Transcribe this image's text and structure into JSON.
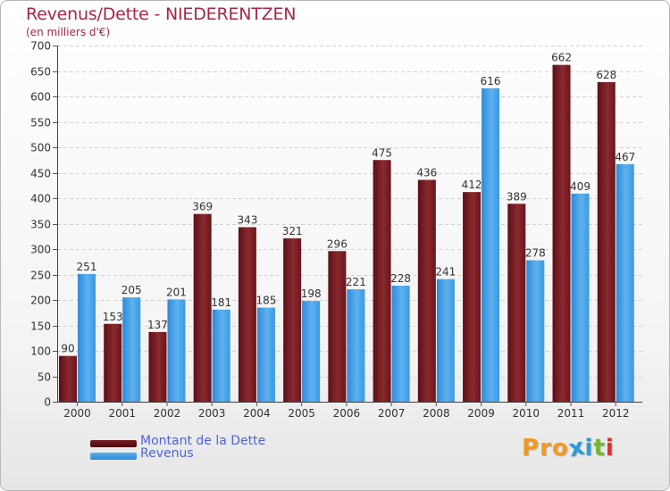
{
  "chart_data": {
    "type": "bar",
    "title": "Revenus/Dette - NIEDERENTZEN",
    "subtitle": "(en milliers d'€)",
    "categories": [
      "2000",
      "2001",
      "2002",
      "2003",
      "2004",
      "2005",
      "2006",
      "2007",
      "2008",
      "2009",
      "2010",
      "2011",
      "2012"
    ],
    "series": [
      {
        "name": "Montant de la Dette",
        "color": "#7a1a22",
        "values": [
          90,
          153,
          137,
          369,
          343,
          321,
          296,
          475,
          436,
          412,
          389,
          662,
          628
        ]
      },
      {
        "name": "Revenus",
        "color": "#4aa3e8",
        "values": [
          251,
          205,
          201,
          181,
          185,
          198,
          221,
          228,
          241,
          616,
          278,
          409,
          467
        ]
      }
    ],
    "ylim": [
      0,
      700
    ],
    "yticks": [
      0,
      50,
      100,
      150,
      200,
      250,
      300,
      350,
      400,
      450,
      500,
      550,
      600,
      650,
      700
    ],
    "grid": true,
    "legend": "bottom-left"
  },
  "brand": {
    "text": "Proxiti",
    "letters": [
      "P",
      "r",
      "o",
      "x",
      "i",
      "t",
      "i"
    ],
    "colors": [
      "#f29a1f",
      "#f29a1f",
      "#f29a1f",
      "#2b9ad8",
      "#2b9ad8",
      "#74b72e",
      "#d9322e"
    ]
  }
}
